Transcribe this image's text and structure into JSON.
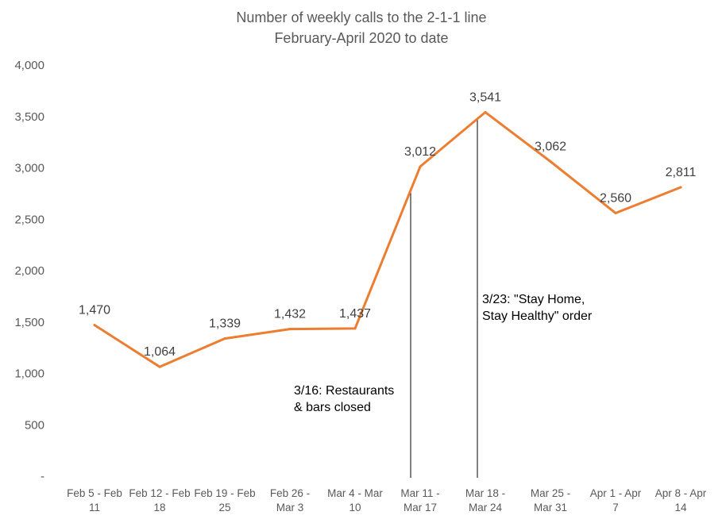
{
  "chart_data": {
    "type": "line",
    "title": "Number of weekly calls to the 2-1-1 line",
    "subtitle": "February-April  2020 to date",
    "xlabel": "",
    "ylabel": "",
    "ylim": [
      0,
      4000
    ],
    "yticks": [
      0,
      500,
      1000,
      1500,
      2000,
      2500,
      3000,
      3500,
      4000
    ],
    "ytick_labels": [
      "-",
      "500",
      "1,000",
      "1,500",
      "2,000",
      "2,500",
      "3,000",
      "3,500",
      "4,000"
    ],
    "grid": false,
    "legend": "none",
    "categories": [
      [
        "Feb 5 - Feb",
        "11"
      ],
      [
        "Feb 12 - Feb",
        "18"
      ],
      [
        "Feb 19 - Feb",
        "25"
      ],
      [
        "Feb 26 -",
        "Mar 3"
      ],
      [
        "Mar 4 - Mar",
        "10"
      ],
      [
        "Mar 11 -",
        "Mar 17"
      ],
      [
        "Mar 18 -",
        "Mar 24"
      ],
      [
        "Mar 25 -",
        "Mar 31"
      ],
      [
        "Apr 1 - Apr",
        "7"
      ],
      [
        "Apr 8 - Apr",
        "14"
      ]
    ],
    "values": [
      1470,
      1064,
      1339,
      1432,
      1437,
      3012,
      3541,
      3062,
      2560,
      2811
    ],
    "data_labels": [
      "1,470",
      "1,064",
      "1,339",
      "1,432",
      "1,437",
      "3,012",
      "3,541",
      "3,062",
      "2,560",
      "2,811"
    ],
    "line_color": "#ED7D31",
    "annotations": [
      {
        "category_index": 5,
        "lines": [
          "3/16: Restaurants",
          "& bars closed"
        ]
      },
      {
        "category_index": 6,
        "lines": [
          "3/23: \"Stay Home,",
          "Stay Healthy\" order"
        ]
      }
    ]
  }
}
